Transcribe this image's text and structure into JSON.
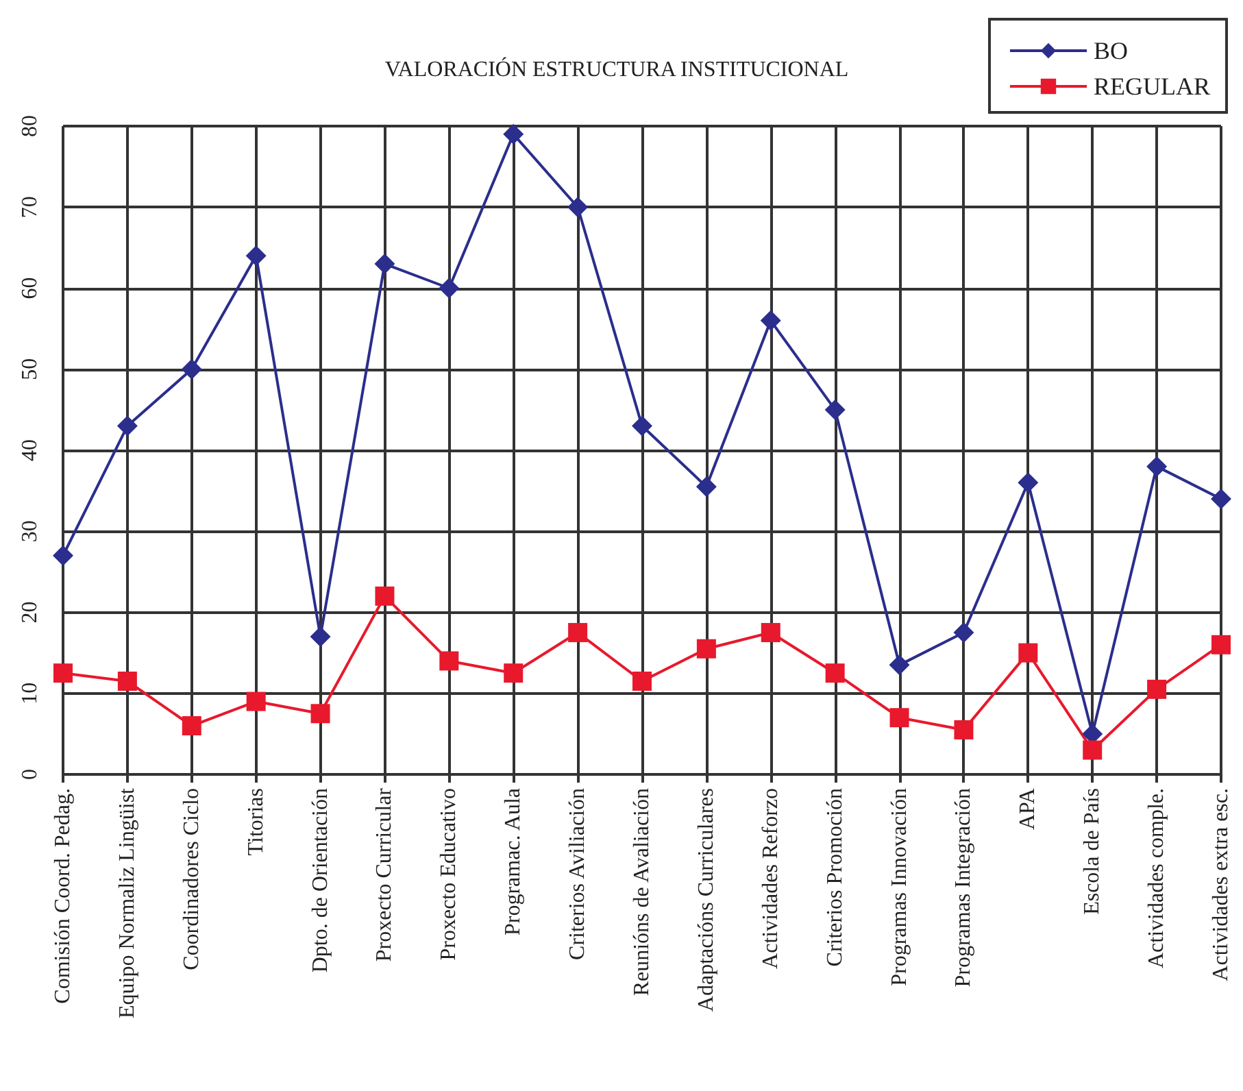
{
  "chart_data": {
    "type": "line",
    "title": "VALORACIÓN ESTRUCTURA INSTITUCIONAL",
    "categories": [
      "Comisión Coord. Pedag.",
      "Equipo Normaliz Lingüist",
      "Coordinadores Ciclo",
      "Titorias",
      "Dpto. de Orientación",
      "Proxecto Curricular",
      "Proxecto Educativo",
      "Programac. Aula",
      "Criterios Aviliación",
      "Reunións de Avaliación",
      "Adaptacións Curriculares",
      "Actividades Reforzo",
      "Criterios Promoción",
      "Programas Innovación",
      "Programas Integración",
      "APA",
      "Escola de País",
      "Actividades comple.",
      "Actividades extra esc."
    ],
    "series": [
      {
        "name": "BO",
        "color": "#2b2e8c",
        "marker": "diamond",
        "values": [
          27,
          43,
          50,
          64,
          17,
          63,
          60,
          79,
          70,
          43,
          35.5,
          56,
          45,
          13.5,
          17.5,
          36,
          5,
          38,
          34
        ]
      },
      {
        "name": "REGULAR",
        "color": "#e8192c",
        "marker": "square",
        "values": [
          12.5,
          11.5,
          6,
          9,
          7.5,
          22,
          14,
          12.5,
          17.5,
          11.5,
          15.5,
          17.5,
          12.5,
          7,
          5.5,
          15,
          3,
          10.5,
          16
        ]
      }
    ],
    "ylim": [
      0,
      80
    ],
    "yticks": [
      0,
      10,
      20,
      30,
      40,
      50,
      60,
      70,
      80
    ],
    "grid": true,
    "legend": "top right",
    "line_style": "solid"
  }
}
